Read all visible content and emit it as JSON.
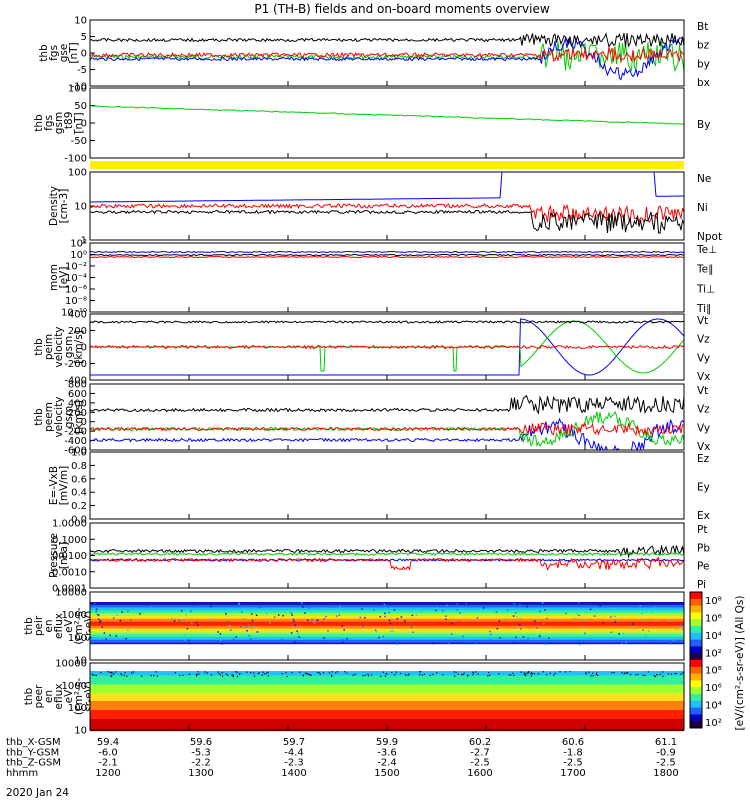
{
  "title": "P1 (TH-B) fields and on-board moments overview",
  "date_label": "2020 Jan 24",
  "colors": {
    "black": "#000000",
    "red": "#ff0000",
    "green": "#00cc00",
    "blue": "#0000ff",
    "yellow": "#ffee00"
  },
  "chart_data": [
    {
      "type": "line",
      "ylabel_lines": [
        "thb",
        "fgs",
        "gse",
        "[nT]"
      ],
      "yticks": [
        "10",
        "5",
        "0",
        "-5",
        "-10"
      ],
      "ylim": [
        -10,
        10
      ],
      "log": false,
      "series": [
        {
          "name": "Bt",
          "color": "#000000"
        },
        {
          "name": "bz",
          "color": "#ff0000"
        },
        {
          "name": "by",
          "color": "#00cc00"
        },
        {
          "name": "bx",
          "color": "#0000ff"
        }
      ]
    },
    {
      "type": "line",
      "ylabel_lines": [
        "thb",
        "fgs",
        "gsm",
        "_t89",
        "[nT]"
      ],
      "yticks": [
        "100",
        "50",
        "0",
        "-50",
        "-100"
      ],
      "ylim": [
        -130,
        130
      ],
      "log": false,
      "series": [
        {
          "name": "By",
          "color": "#00cc00"
        }
      ]
    },
    {
      "type": "line",
      "ylabel_lines": [
        "Density",
        "[cm-3]"
      ],
      "yticks": [
        "100",
        "10",
        "1"
      ],
      "ylim": [
        1,
        200
      ],
      "log": true,
      "series": [
        {
          "name": "Ne",
          "color": "#ff0000"
        },
        {
          "name": "Ni",
          "color": "#000000"
        },
        {
          "name": "Npot",
          "color": "#0000ff"
        }
      ]
    },
    {
      "type": "line",
      "ylabel_lines": [
        "mom",
        "[eV]"
      ],
      "yticks": [
        "10²",
        "10⁰",
        "10⁻²",
        "10⁻⁴",
        "10⁻⁶",
        "10⁻⁸",
        "10⁻¹⁰"
      ],
      "ylim": [
        -10.5,
        2.5
      ],
      "log": true,
      "series": [
        {
          "name": "Te⊥",
          "color": "#ff0000"
        },
        {
          "name": "Te∥",
          "color": "#000000"
        },
        {
          "name": "Ti⊥",
          "color": "#0000ff"
        },
        {
          "name": "Ti∥",
          "color": "#00cc00"
        }
      ]
    },
    {
      "type": "line",
      "ylabel_lines": [
        "thb",
        "peim",
        "velocity",
        "gsm",
        "[km/s]"
      ],
      "yticks": [
        "400",
        "200",
        "0",
        "-200",
        "-400"
      ],
      "ylim": [
        -400,
        400
      ],
      "log": false,
      "series": [
        {
          "name": "Vt",
          "color": "#000000"
        },
        {
          "name": "Vz",
          "color": "#ff0000"
        },
        {
          "name": "Vy",
          "color": "#00cc00"
        },
        {
          "name": "Vx",
          "color": "#0000ff"
        }
      ]
    },
    {
      "type": "line",
      "ylabel_lines": [
        "thb",
        "peem",
        "velocity",
        "gsm",
        "[km/s]"
      ],
      "yticks": [
        "800",
        "600",
        "400",
        "200",
        "0",
        "-200",
        "-400",
        "-600"
      ],
      "ylim": [
        -600,
        800
      ],
      "log": false,
      "series": [
        {
          "name": "Vt",
          "color": "#000000"
        },
        {
          "name": "Vz",
          "color": "#ff0000"
        },
        {
          "name": "Vy",
          "color": "#00cc00"
        },
        {
          "name": "Vx",
          "color": "#0000ff"
        }
      ]
    },
    {
      "type": "line",
      "ylabel_lines": [
        "E=-VxB",
        "[mV/m]"
      ],
      "yticks": [
        "1.0",
        "0.8",
        "0.6",
        "0.4",
        "0.2",
        "0.0"
      ],
      "ylim": [
        0,
        1
      ],
      "log": false,
      "series": [
        {
          "name": "Ez",
          "color": "#ff0000"
        },
        {
          "name": "Ey",
          "color": "#00cc00"
        },
        {
          "name": "Ex",
          "color": "#0000ff"
        }
      ]
    },
    {
      "type": "line",
      "ylabel_lines": [
        "Pressure",
        "[nPa]"
      ],
      "yticks": [
        "1.0000",
        "0.1000",
        "0.0100",
        "0.0010",
        "0.0001"
      ],
      "ylim": [
        -4,
        0
      ],
      "log": true,
      "series": [
        {
          "name": "Pt",
          "color": "#000000"
        },
        {
          "name": "Pb",
          "color": "#ff0000"
        },
        {
          "name": "Pe",
          "color": "#00cc00"
        },
        {
          "name": "Pi",
          "color": "#0000ff"
        }
      ]
    },
    {
      "type": "heatmap",
      "ylabel_lines": [
        "thb",
        "peir",
        "en",
        "eflux",
        "eV",
        "(cm²-s-",
        "sr-eV)"
      ],
      "yticks": [
        "10000",
        "1000",
        "100",
        "10"
      ],
      "ylim": [
        1,
        4.3
      ],
      "log": true
    },
    {
      "type": "heatmap",
      "ylabel_lines": [
        "thb",
        "peer",
        "en",
        "eflux",
        "eV",
        "(cm²-s-",
        "sr-eV)"
      ],
      "yticks": [
        "10000",
        "1000",
        "100",
        "10"
      ],
      "ylim": [
        0.7,
        4.3
      ],
      "log": true
    }
  ],
  "colorbar": {
    "label": "[eV/(cm²-s-sr-eV)] (All Qs)",
    "ticks": [
      "10⁸",
      "10⁶",
      "10⁴",
      "10²",
      "10⁸",
      "10⁶",
      "10⁴",
      "10²"
    ]
  },
  "xaxis_rows": [
    {
      "label": "thb_X-GSM",
      "values": [
        "59.4",
        "59.6",
        "59.7",
        "59.9",
        "60.2",
        "60.6",
        "61.1"
      ]
    },
    {
      "label": "thb_Y-GSM",
      "values": [
        "-6.0",
        "-5.3",
        "-4.4",
        "-3.6",
        "-2.7",
        "-1.8",
        "-0.9"
      ]
    },
    {
      "label": "thb_Z-GSM",
      "values": [
        "-2.1",
        "-2.2",
        "-2.3",
        "-2.4",
        "-2.5",
        "-2.5",
        "-2.5"
      ]
    },
    {
      "label": "hhmm",
      "values": [
        "1200",
        "1300",
        "1400",
        "1500",
        "1600",
        "1700",
        "1800"
      ]
    }
  ]
}
